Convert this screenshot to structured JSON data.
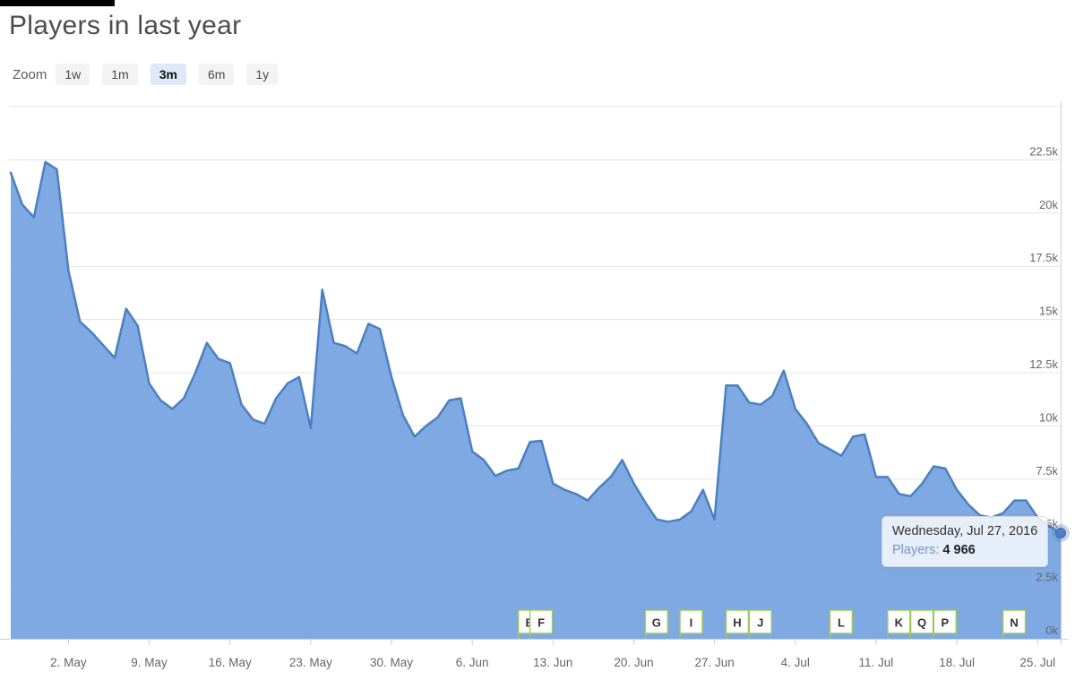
{
  "title": "Players in last year",
  "zoom_controls": {
    "label": "Zoom",
    "active_index": 2,
    "buttons": [
      {
        "label": "1w"
      },
      {
        "label": "1m"
      },
      {
        "label": "3m"
      },
      {
        "label": "6m"
      },
      {
        "label": "1y"
      }
    ]
  },
  "tooltip": {
    "date": "Wednesday, Jul 27, 2016",
    "series": "Players",
    "value": "4 966"
  },
  "colors": {
    "line": "#4b80c1",
    "fill": "#7ea9e2",
    "grid": "#e5e5e5",
    "axis": "#cfcfcf",
    "axis_label": "#666666",
    "flag_border": "#9cc95e",
    "flag_fill": "#ffffff",
    "flag_text": "#333333",
    "marker": "#5181c2",
    "marker_ring": "#3f6ba8",
    "marker_halo": "rgba(91,134,199,0.35)",
    "tooltip_series": "#7394c9"
  },
  "chart_data": {
    "type": "area",
    "title": "Players in last year",
    "legend": false,
    "grid": true,
    "ylim": [
      0,
      25000
    ],
    "series": [
      {
        "name": "Players",
        "values": [
          21900,
          20400,
          19800,
          22400,
          22050,
          17300,
          14900,
          14400,
          13800,
          13200,
          15500,
          14700,
          12000,
          11200,
          10800,
          11300,
          12500,
          13900,
          13150,
          12950,
          11000,
          10300,
          10100,
          11300,
          12000,
          12300,
          9900,
          16400,
          13900,
          13750,
          13400,
          14800,
          14550,
          12300,
          10500,
          9500,
          10000,
          10400,
          11200,
          11300,
          8800,
          8400,
          7650,
          7900,
          8000,
          9250,
          9300,
          7300,
          7000,
          6800,
          6500,
          7100,
          7600,
          8400,
          7300,
          6400,
          5600,
          5500,
          5600,
          6000,
          7000,
          5600,
          11900,
          11900,
          11100,
          11000,
          11400,
          12600,
          10800,
          10100,
          9200,
          8900,
          8600,
          9500,
          9600,
          7600,
          7600,
          6800,
          6700,
          7300,
          8100,
          8000,
          7000,
          6300,
          5800,
          5700,
          5900,
          6500,
          6500,
          5700,
          5300,
          4966
        ]
      }
    ],
    "x_ticks": [
      {
        "label": "2. May",
        "day": 5
      },
      {
        "label": "9. May",
        "day": 12
      },
      {
        "label": "16. May",
        "day": 19
      },
      {
        "label": "23. May",
        "day": 26
      },
      {
        "label": "30. May",
        "day": 33
      },
      {
        "label": "6. Jun",
        "day": 40
      },
      {
        "label": "13. Jun",
        "day": 47
      },
      {
        "label": "20. Jun",
        "day": 54
      },
      {
        "label": "27. Jun",
        "day": 61
      },
      {
        "label": "4. Jul",
        "day": 68
      },
      {
        "label": "11. Jul",
        "day": 75
      },
      {
        "label": "18. Jul",
        "day": 82
      },
      {
        "label": "25. Jul",
        "day": 89
      }
    ],
    "y_ticks": [
      {
        "value": 0,
        "label": "0k"
      },
      {
        "value": 2500,
        "label": "2.5k"
      },
      {
        "value": 5000,
        "label": "5k"
      },
      {
        "value": 7500,
        "label": "7.5k"
      },
      {
        "value": 10000,
        "label": "10k"
      },
      {
        "value": 12500,
        "label": "12.5k"
      },
      {
        "value": 15000,
        "label": "15k"
      },
      {
        "value": 17500,
        "label": "17.5k"
      },
      {
        "value": 20000,
        "label": "20k"
      },
      {
        "value": 22500,
        "label": "22.5k"
      },
      {
        "value": 25000,
        "label": ""
      }
    ],
    "flags": [
      {
        "label": "B",
        "day_index": 44
      },
      {
        "label": "F",
        "day_index": 45
      },
      {
        "label": "G",
        "day_index": 55
      },
      {
        "label": "I",
        "day_index": 58
      },
      {
        "label": "H",
        "day_index": 62
      },
      {
        "label": "J",
        "day_index": 64
      },
      {
        "label": "L",
        "day_index": 71
      },
      {
        "label": "K",
        "day_index": 76
      },
      {
        "label": "P",
        "day_index": 80
      },
      {
        "label": "Q",
        "day_index": 78
      },
      {
        "label": "N",
        "day_index": 86
      }
    ],
    "selected_point": {
      "date": "Wednesday, Jul 27, 2016",
      "players": 4966
    }
  }
}
